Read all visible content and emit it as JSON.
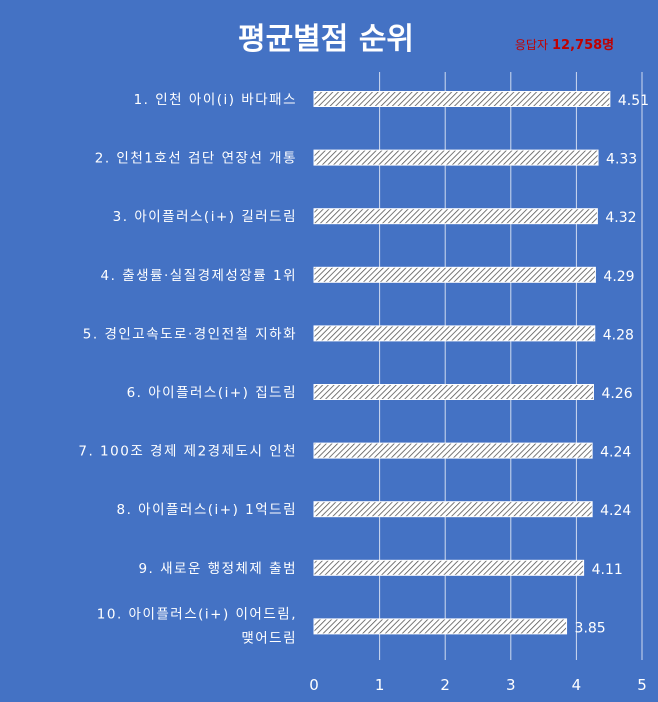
{
  "chart_data": {
    "type": "bar",
    "orientation": "horizontal",
    "title": "평균별점 순위",
    "respondents_label": "응답자",
    "respondents_count": "12,758명",
    "categories": [
      [
        "1. 인천 아이(i) 바다패스"
      ],
      [
        "2. 인천1호선 검단 연장선 개통"
      ],
      [
        "3. 아이플러스(i+) 길러드림"
      ],
      [
        "4. 출생률·실질경제성장률 1위"
      ],
      [
        "5. 경인고속도로·경인전철 지하화"
      ],
      [
        "6. 아이플러스(i+) 집드림"
      ],
      [
        "7. 100조 경제 제2경제도시 인천"
      ],
      [
        "8. 아이플러스(i+) 1억드림"
      ],
      [
        "9. 새로운 행정체제 출범"
      ],
      [
        "10. 아이플러스(i+) 이어드림,",
        "맺어드림"
      ]
    ],
    "values": [
      4.51,
      4.33,
      4.32,
      4.29,
      4.28,
      4.26,
      4.24,
      4.24,
      4.11,
      3.85
    ],
    "xlim": [
      0,
      5
    ],
    "xticks": [
      "0",
      "1",
      "2",
      "3",
      "4",
      "5"
    ],
    "grid": true,
    "colors": {
      "background": "#4472c4",
      "bar_fill": "#ffffff",
      "bar_hatch": "#555555",
      "text": "#ffffff",
      "respondents": "#c00000"
    }
  }
}
